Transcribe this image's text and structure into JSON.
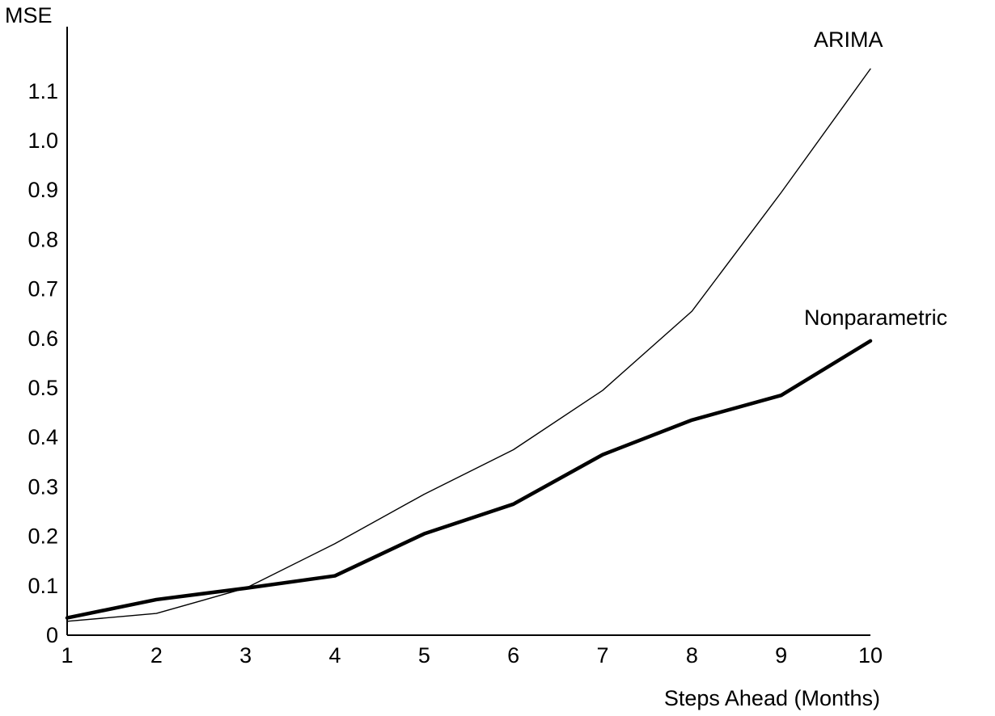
{
  "chart_data": {
    "type": "line",
    "title": "",
    "xlabel": "Steps Ahead (Months)",
    "ylabel": "MSE",
    "x": [
      1,
      2,
      3,
      4,
      5,
      6,
      7,
      8,
      9,
      10
    ],
    "x_tick_labels": [
      "1",
      "2",
      "3",
      "4",
      "5",
      "6",
      "7",
      "8",
      "9",
      "10"
    ],
    "y_tick_labels": [
      "0",
      "0.1",
      "0.2",
      "0.3",
      "0.4",
      "0.5",
      "0.6",
      "0.7",
      "0.8",
      "0.9",
      "1.0",
      "1.1"
    ],
    "y_ticks": [
      0,
      0.1,
      0.2,
      0.3,
      0.4,
      0.5,
      0.6,
      0.7,
      0.8,
      0.9,
      1.0,
      1.1
    ],
    "xlim": [
      1,
      10
    ],
    "ylim": [
      0,
      1.18
    ],
    "grid": false,
    "legend": "none (series labeled directly at line ends)",
    "series": [
      {
        "name": "ARIMA",
        "values": [
          0.028,
          0.044,
          0.095,
          0.185,
          0.285,
          0.375,
          0.495,
          0.655,
          0.895,
          1.145
        ],
        "color": "#000000",
        "weight": "thin"
      },
      {
        "name": "Nonparametric",
        "values": [
          0.035,
          0.072,
          0.095,
          0.12,
          0.205,
          0.265,
          0.365,
          0.435,
          0.485,
          0.595
        ],
        "color": "#000000",
        "weight": "thick"
      }
    ]
  }
}
